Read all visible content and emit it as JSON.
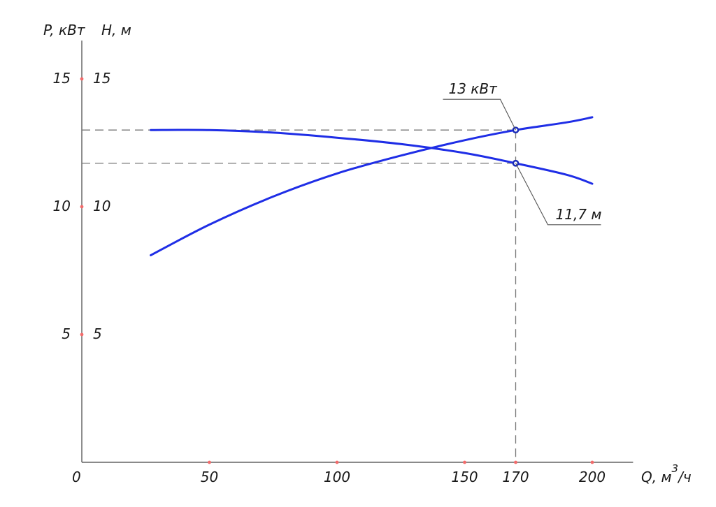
{
  "chart_data": {
    "type": "line",
    "title": "",
    "ylabel_left": "P, кВт",
    "ylabel_right": "H, м",
    "xlabel": "Q, м",
    "xlabel_sup": "3",
    "xlabel_tail": "/ч",
    "origin_label": "0",
    "xlim": [
      0,
      216
    ],
    "ylim": [
      0,
      16.5
    ],
    "grid": false,
    "legend": "none",
    "x_ticks": [
      {
        "value": 50,
        "label": "50"
      },
      {
        "value": 100,
        "label": "100"
      },
      {
        "value": 150,
        "label": "150"
      },
      {
        "value": 170,
        "label": "170"
      },
      {
        "value": 200,
        "label": "200"
      }
    ],
    "y_ticks": [
      {
        "value": 5,
        "label": "5",
        "label_right": "5"
      },
      {
        "value": 10,
        "label": "10",
        "label_right": "10"
      },
      {
        "value": 15,
        "label": "15",
        "label_right": "15"
      }
    ],
    "series": [
      {
        "key": "power",
        "x": [
          27,
          50,
          75,
          100,
          125,
          150,
          170,
          190,
          200
        ],
        "y": [
          8.1,
          9.3,
          10.4,
          11.3,
          12.0,
          12.6,
          13.0,
          13.3,
          13.5
        ]
      },
      {
        "key": "head",
        "x": [
          27,
          50,
          75,
          100,
          125,
          150,
          170,
          190,
          200
        ],
        "y": [
          13.0,
          13.0,
          12.9,
          12.7,
          12.45,
          12.1,
          11.7,
          11.25,
          10.9
        ]
      }
    ],
    "operating_point": {
      "x": 170,
      "power_value": 13,
      "head_value": 11.7,
      "power_label": "13 кВт",
      "head_label": "11,7 м"
    },
    "colors": {
      "curve": "#1f2ee6",
      "tick_dot": "#f36b6b",
      "marker": "#1a2bb8"
    }
  }
}
